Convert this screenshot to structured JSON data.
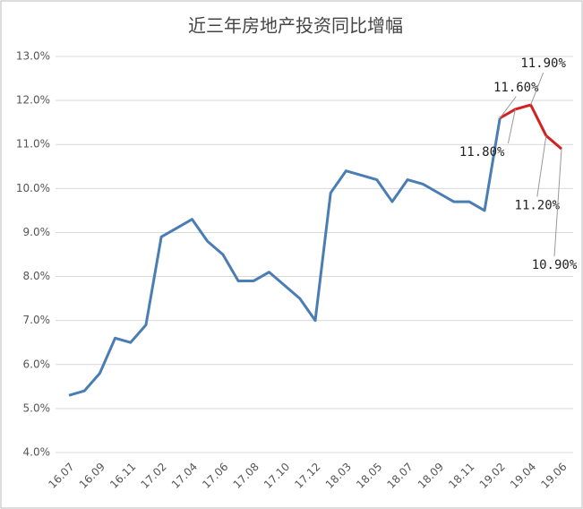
{
  "chart_data": {
    "type": "line",
    "title": "近三年房地产投资同比增幅",
    "categories": [
      "16.07",
      null,
      "16.09",
      null,
      "16.11",
      null,
      "17.02",
      null,
      "17.04",
      null,
      "17.06",
      null,
      "17.08",
      null,
      "17.10",
      null,
      "17.12",
      null,
      "18.03",
      null,
      "18.05",
      null,
      "18.07",
      null,
      "18.09",
      null,
      "18.11",
      null,
      "19.02",
      null,
      "19.04",
      null,
      "19.06"
    ],
    "series": [
      {
        "name": null,
        "color": "#4a7db4",
        "values": [
          5.3,
          5.4,
          5.8,
          6.6,
          6.5,
          6.9,
          8.9,
          9.1,
          9.3,
          8.8,
          8.5,
          7.9,
          7.9,
          8.1,
          7.8,
          7.5,
          7.0,
          9.9,
          10.4,
          10.3,
          10.2,
          9.7,
          10.2,
          10.1,
          9.9,
          9.7,
          9.7,
          9.5,
          11.6,
          null,
          null,
          null,
          null
        ]
      },
      {
        "name": null,
        "color": "#d42020",
        "values": [
          null,
          null,
          null,
          null,
          null,
          null,
          null,
          null,
          null,
          null,
          null,
          null,
          null,
          null,
          null,
          null,
          null,
          null,
          null,
          null,
          null,
          null,
          null,
          null,
          null,
          null,
          null,
          null,
          11.6,
          11.8,
          11.9,
          11.2,
          10.9
        ],
        "value_labels": [
          null,
          null,
          null,
          null,
          null,
          null,
          null,
          null,
          null,
          null,
          null,
          null,
          null,
          null,
          null,
          null,
          null,
          null,
          null,
          null,
          null,
          null,
          null,
          null,
          null,
          null,
          null,
          null,
          "11.60%",
          "11.80%",
          "11.90%",
          "11.20%",
          "10.90%"
        ]
      }
    ],
    "ylim": [
      4,
      13
    ],
    "yticks": [
      {
        "value": 4,
        "label": "4.0%"
      },
      {
        "value": 5,
        "label": "5.0%"
      },
      {
        "value": 6,
        "label": "6.0%"
      },
      {
        "value": 7,
        "label": "7.0%"
      },
      {
        "value": 8,
        "label": "8.0%"
      },
      {
        "value": 9,
        "label": "9.0%"
      },
      {
        "value": 10,
        "label": "10.0%"
      },
      {
        "value": 11,
        "label": "11.0%"
      },
      {
        "value": 12,
        "label": "12.0%"
      },
      {
        "value": 13,
        "label": "13.0%"
      }
    ],
    "grid": true
  }
}
